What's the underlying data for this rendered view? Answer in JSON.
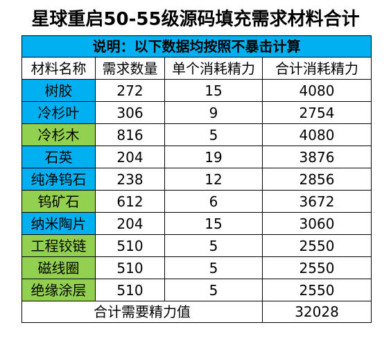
{
  "title": "星球重启50-55级源码填充需求材料合计",
  "note": "说明：以下数据均按照不暴击计算",
  "colors": {
    "note_bg": "#00b0f0",
    "blue_cell": "#00b0f0",
    "green_cell": "#92d050",
    "border": "#000000"
  },
  "headers": [
    "材料名称",
    "需求数量",
    "单个消耗精力",
    "合计消耗精力"
  ],
  "rows": [
    {
      "name": "树胶",
      "qty": "272",
      "unit": "15",
      "total": "4080",
      "color": "#00b0f0"
    },
    {
      "name": "冷杉叶",
      "qty": "306",
      "unit": "9",
      "total": "2754",
      "color": "#00b0f0"
    },
    {
      "name": "冷杉木",
      "qty": "816",
      "unit": "5",
      "total": "4080",
      "color": "#92d050"
    },
    {
      "name": "石英",
      "qty": "204",
      "unit": "19",
      "total": "3876",
      "color": "#00b0f0"
    },
    {
      "name": "纯净钨石",
      "qty": "238",
      "unit": "12",
      "total": "2856",
      "color": "#00b0f0"
    },
    {
      "name": "钨矿石",
      "qty": "612",
      "unit": "6",
      "total": "3672",
      "color": "#92d050"
    },
    {
      "name": "纳米陶片",
      "qty": "204",
      "unit": "15",
      "total": "3060",
      "color": "#00b0f0"
    },
    {
      "name": "工程铰链",
      "qty": "510",
      "unit": "5",
      "total": "2550",
      "color": "#92d050"
    },
    {
      "name": "磁线圈",
      "qty": "510",
      "unit": "5",
      "total": "2550",
      "color": "#92d050"
    },
    {
      "name": "绝缘涂层",
      "qty": "510",
      "unit": "5",
      "total": "2550",
      "color": "#92d050"
    }
  ],
  "total": {
    "label": "合计需要精力值",
    "value": "32028"
  }
}
